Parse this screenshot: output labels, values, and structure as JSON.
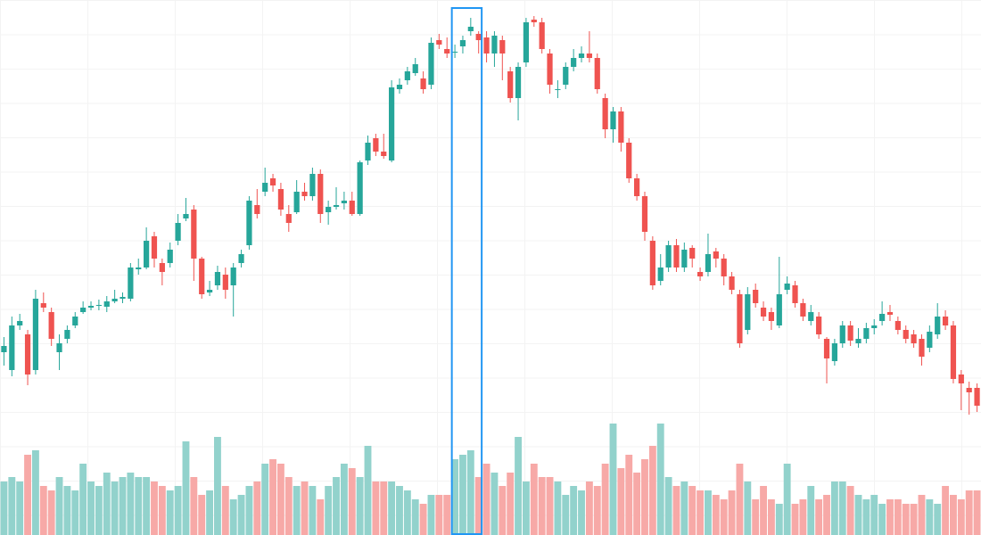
{
  "chart_data": {
    "type": "candlestick",
    "up_color": "#26a69a",
    "down_color": "#ef5350",
    "volume_up_color": "#92d2cc",
    "volume_down_color": "#f7a9a7",
    "ylim": [
      0,
      600
    ],
    "volume_ylim": [
      0,
      600
    ],
    "ohlc": [
      [
        205,
        222,
        190,
        212
      ],
      [
        185,
        245,
        178,
        235
      ],
      [
        235,
        248,
        230,
        240
      ],
      [
        225,
        230,
        168,
        180
      ],
      [
        185,
        275,
        180,
        265
      ],
      [
        260,
        272,
        250,
        255
      ],
      [
        250,
        255,
        212,
        220
      ],
      [
        205,
        225,
        185,
        215
      ],
      [
        220,
        235,
        215,
        230
      ],
      [
        235,
        250,
        232,
        245
      ],
      [
        250,
        262,
        248,
        255
      ],
      [
        255,
        262,
        252,
        257
      ],
      [
        258,
        264,
        252,
        258
      ],
      [
        256,
        268,
        250,
        262
      ],
      [
        262,
        275,
        260,
        265
      ],
      [
        265,
        272,
        260,
        267
      ],
      [
        265,
        305,
        262,
        300
      ],
      [
        298,
        310,
        292,
        300
      ],
      [
        300,
        345,
        298,
        330
      ],
      [
        335,
        340,
        300,
        310
      ],
      [
        305,
        310,
        280,
        295
      ],
      [
        305,
        328,
        300,
        320
      ],
      [
        330,
        360,
        325,
        350
      ],
      [
        355,
        378,
        352,
        360
      ],
      [
        365,
        370,
        285,
        310
      ],
      [
        310,
        312,
        265,
        270
      ],
      [
        272,
        285,
        268,
        275
      ],
      [
        280,
        302,
        275,
        295
      ],
      [
        292,
        300,
        265,
        275
      ],
      [
        280,
        305,
        245,
        300
      ],
      [
        305,
        320,
        300,
        315
      ],
      [
        325,
        380,
        320,
        375
      ],
      [
        370,
        388,
        355,
        360
      ],
      [
        385,
        412,
        380,
        395
      ],
      [
        400,
        405,
        385,
        392
      ],
      [
        388,
        395,
        358,
        365
      ],
      [
        360,
        370,
        340,
        350
      ],
      [
        362,
        398,
        360,
        385
      ],
      [
        385,
        395,
        375,
        380
      ],
      [
        380,
        412,
        375,
        405
      ],
      [
        405,
        410,
        350,
        360
      ],
      [
        362,
        375,
        348,
        368
      ],
      [
        368,
        390,
        365,
        370
      ],
      [
        372,
        385,
        365,
        375
      ],
      [
        375,
        385,
        358,
        360
      ],
      [
        360,
        420,
        358,
        418
      ],
      [
        420,
        448,
        415,
        440
      ],
      [
        445,
        450,
        425,
        430
      ],
      [
        430,
        450,
        422,
        425
      ],
      [
        420,
        510,
        418,
        502
      ],
      [
        500,
        512,
        495,
        505
      ],
      [
        510,
        525,
        505,
        520
      ],
      [
        518,
        535,
        515,
        528
      ],
      [
        512,
        520,
        495,
        500
      ],
      [
        505,
        558,
        500,
        552
      ],
      [
        555,
        562,
        545,
        550
      ],
      [
        545,
        558,
        535,
        540
      ],
      [
        542,
        550,
        535,
        542
      ],
      [
        548,
        560,
        540,
        555
      ],
      [
        565,
        580,
        560,
        570
      ],
      [
        562,
        565,
        540,
        555
      ],
      [
        558,
        565,
        530,
        540
      ],
      [
        540,
        565,
        525,
        560
      ],
      [
        555,
        560,
        510,
        540
      ],
      [
        520,
        525,
        485,
        490
      ],
      [
        490,
        530,
        465,
        525
      ],
      [
        530,
        580,
        525,
        575
      ],
      [
        578,
        582,
        570,
        575
      ],
      [
        575,
        580,
        540,
        545
      ],
      [
        540,
        545,
        495,
        505
      ],
      [
        500,
        510,
        490,
        500
      ],
      [
        505,
        530,
        500,
        525
      ],
      [
        525,
        545,
        520,
        535
      ],
      [
        535,
        548,
        530,
        540
      ],
      [
        540,
        565,
        530,
        535
      ],
      [
        535,
        540,
        495,
        500
      ],
      [
        490,
        495,
        445,
        455
      ],
      [
        455,
        480,
        440,
        475
      ],
      [
        475,
        480,
        430,
        440
      ],
      [
        440,
        445,
        395,
        400
      ],
      [
        400,
        405,
        375,
        380
      ],
      [
        380,
        385,
        330,
        340
      ],
      [
        330,
        335,
        275,
        280
      ],
      [
        285,
        315,
        280,
        300
      ],
      [
        300,
        330,
        295,
        325
      ],
      [
        325,
        332,
        295,
        300
      ],
      [
        300,
        328,
        295,
        320
      ],
      [
        322,
        325,
        300,
        310
      ],
      [
        295,
        300,
        285,
        290
      ],
      [
        295,
        338,
        290,
        315
      ],
      [
        318,
        322,
        300,
        310
      ],
      [
        310,
        315,
        280,
        290
      ],
      [
        290,
        295,
        270,
        275
      ],
      [
        270,
        275,
        210,
        215
      ],
      [
        230,
        278,
        225,
        270
      ],
      [
        275,
        282,
        255,
        260
      ],
      [
        255,
        262,
        240,
        245
      ],
      [
        250,
        255,
        230,
        240
      ],
      [
        235,
        312,
        232,
        270
      ],
      [
        275,
        290,
        270,
        282
      ],
      [
        280,
        285,
        255,
        260
      ],
      [
        260,
        265,
        240,
        245
      ],
      [
        240,
        258,
        235,
        250
      ],
      [
        245,
        250,
        220,
        225
      ],
      [
        220,
        222,
        170,
        198
      ],
      [
        195,
        220,
        190,
        215
      ],
      [
        215,
        240,
        210,
        235
      ],
      [
        235,
        240,
        212,
        218
      ],
      [
        215,
        232,
        210,
        220
      ],
      [
        220,
        238,
        215,
        232
      ],
      [
        232,
        242,
        225,
        235
      ],
      [
        240,
        262,
        235,
        248
      ],
      [
        250,
        258,
        240,
        247
      ],
      [
        240,
        245,
        225,
        230
      ],
      [
        230,
        235,
        215,
        220
      ],
      [
        225,
        230,
        210,
        215
      ],
      [
        220,
        225,
        190,
        200
      ],
      [
        210,
        235,
        205,
        228
      ],
      [
        225,
        260,
        220,
        245
      ],
      [
        245,
        252,
        230,
        235
      ],
      [
        235,
        240,
        170,
        175
      ],
      [
        180,
        185,
        140,
        170
      ],
      [
        165,
        172,
        135,
        160
      ],
      [
        165,
        170,
        138,
        145
      ]
    ],
    "volume": [
      60,
      65,
      60,
      90,
      95,
      55,
      50,
      65,
      55,
      50,
      80,
      60,
      55,
      70,
      60,
      65,
      70,
      65,
      65,
      60,
      55,
      50,
      55,
      105,
      65,
      45,
      50,
      110,
      55,
      40,
      45,
      55,
      60,
      80,
      85,
      80,
      65,
      55,
      60,
      55,
      40,
      55,
      65,
      80,
      75,
      65,
      100,
      60,
      60,
      60,
      55,
      50,
      40,
      35,
      45,
      45,
      45,
      85,
      90,
      95,
      65,
      80,
      70,
      55,
      70,
      110,
      60,
      80,
      65,
      65,
      60,
      45,
      55,
      50,
      60,
      55,
      80,
      125,
      75,
      90,
      70,
      85,
      100,
      125,
      65,
      55,
      60,
      55,
      50,
      50,
      45,
      40,
      50,
      80,
      60,
      40,
      55,
      40,
      35,
      80,
      35,
      40,
      55,
      40,
      45,
      60,
      60,
      55,
      45,
      40,
      45,
      35,
      40,
      40,
      35,
      35,
      45,
      40,
      35,
      55,
      45,
      40,
      50,
      50
    ]
  }
}
